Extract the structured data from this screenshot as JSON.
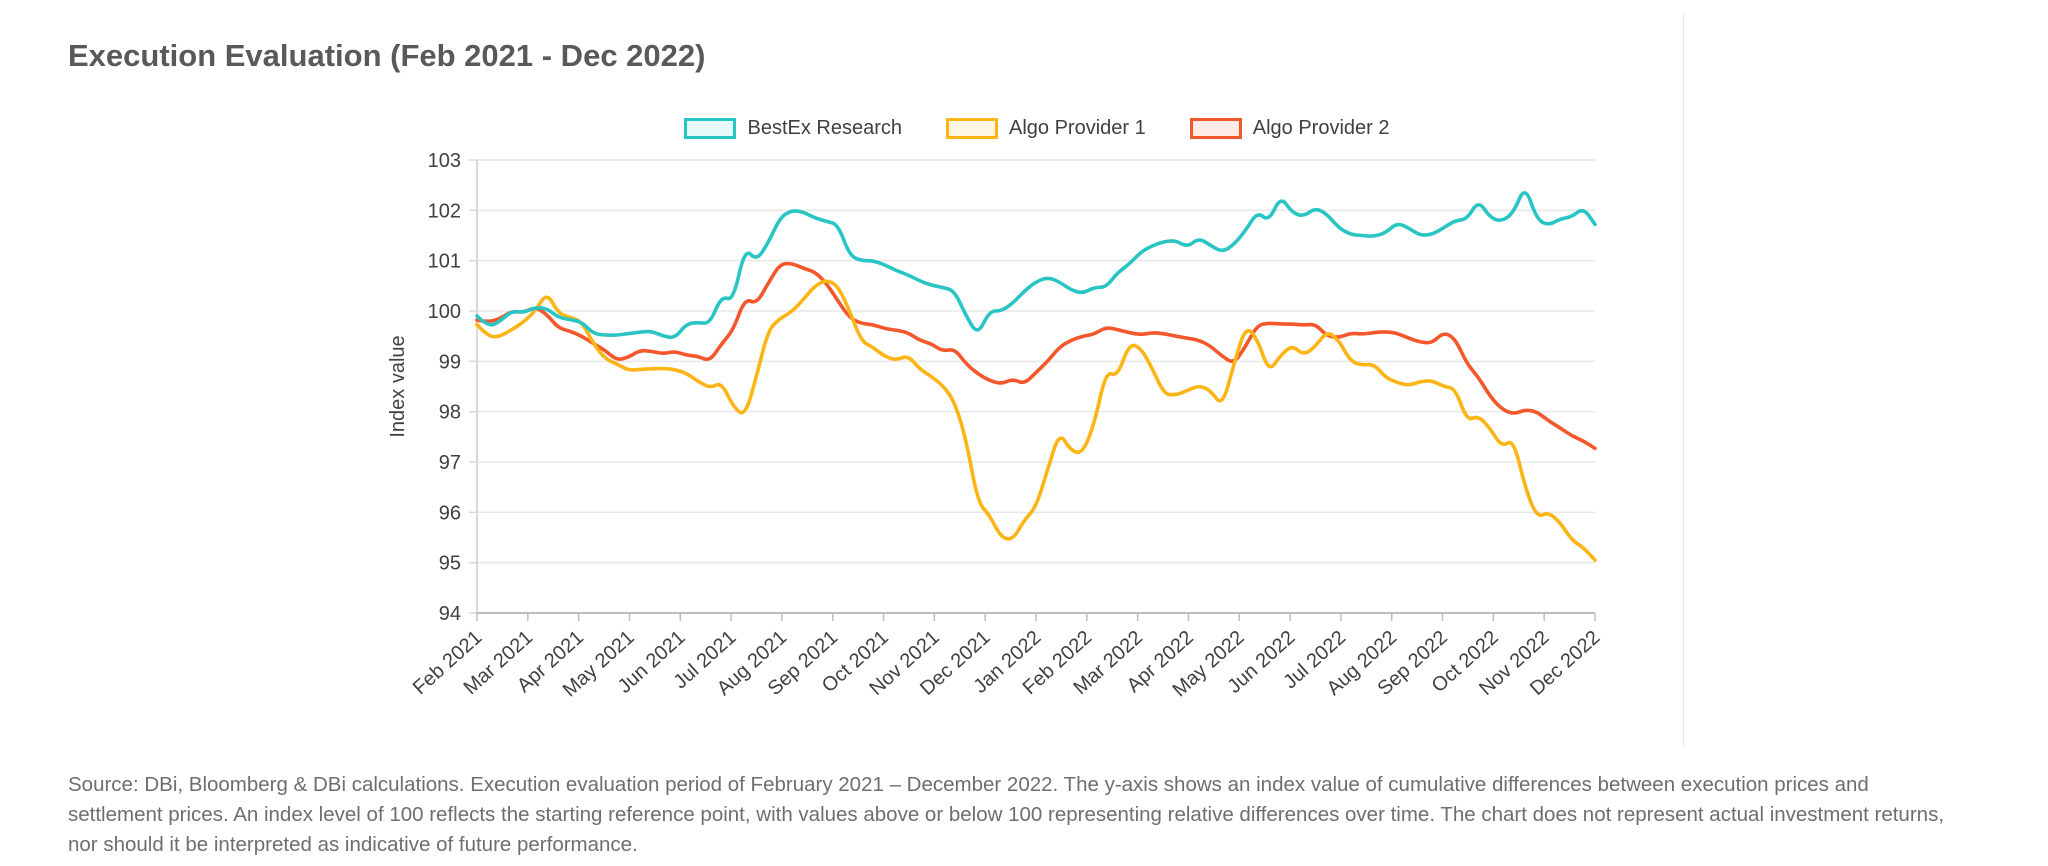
{
  "title": "Execution Evaluation (Feb 2021 - Dec 2022)",
  "footer": {
    "text": "Source: DBi, Bloomberg & DBi calculations. Execution evaluation period of February 2021 – December 2022. The y-axis shows an index value of cumulative differences between execution prices and settlement prices. An index level of 100 reflects the starting reference point, with values above or below 100 representing relative differences over time. The chart does not represent actual investment returns, nor should it be interpreted as indicative of future performance."
  },
  "chart_data": {
    "type": "line",
    "title": "Execution Evaluation (Feb 2021 - Dec 2022)",
    "xlabel": "",
    "ylabel": "Index value",
    "ylim": [
      94,
      103
    ],
    "y_ticks": [
      94,
      95,
      96,
      97,
      98,
      99,
      100,
      101,
      102,
      103
    ],
    "grid": "horizontal",
    "legend_position": "top-center",
    "x_unit": "weekly samples spanning the month ticks",
    "x_tick_labels": [
      "Feb 2021",
      "Mar 2021",
      "Apr 2021",
      "May 2021",
      "Jun 2021",
      "Jul 2021",
      "Aug 2021",
      "Sep 2021",
      "Oct 2021",
      "Nov 2021",
      "Dec 2021",
      "Jan 2022",
      "Feb 2022",
      "Mar 2022",
      "Apr 2022",
      "May 2022",
      "Jun 2022",
      "Jul 2022",
      "Aug 2022",
      "Sep 2022",
      "Oct 2022",
      "Nov 2022",
      "Dec 2022"
    ],
    "colors": {
      "axis_text": "#414042",
      "grid_line": "#e7e7e7",
      "axis_line_left": "#d9d9d9",
      "axis_line_bottom": "#bdbdbd"
    },
    "series": [
      {
        "name": "Algo Provider 2",
        "color": "#f4572b",
        "swatch_fill": "#fcece5",
        "values": [
          99.82,
          99.78,
          99.85,
          100.0,
          99.97,
          100.08,
          99.93,
          99.66,
          99.6,
          99.5,
          99.35,
          99.22,
          99.02,
          99.08,
          99.22,
          99.2,
          99.15,
          99.2,
          99.12,
          99.1,
          99.0,
          99.35,
          99.62,
          100.25,
          100.14,
          100.55,
          100.93,
          100.95,
          100.85,
          100.78,
          100.55,
          100.2,
          99.86,
          99.75,
          99.73,
          99.65,
          99.62,
          99.57,
          99.42,
          99.35,
          99.2,
          99.25,
          98.95,
          98.75,
          98.62,
          98.55,
          98.65,
          98.55,
          98.78,
          99.0,
          99.28,
          99.42,
          99.5,
          99.54,
          99.68,
          99.63,
          99.57,
          99.53,
          99.57,
          99.55,
          99.5,
          99.46,
          99.42,
          99.3,
          99.1,
          98.95,
          99.3,
          99.72,
          99.76,
          99.74,
          99.74,
          99.72,
          99.74,
          99.5,
          99.47,
          99.56,
          99.54,
          99.57,
          99.59,
          99.56,
          99.46,
          99.38,
          99.36,
          99.58,
          99.45,
          98.95,
          98.68,
          98.3,
          98.05,
          97.95,
          98.04,
          98.0,
          97.82,
          97.68,
          97.52,
          97.42,
          97.27
        ]
      },
      {
        "name": "Algo Provider 1",
        "color": "#fdb515",
        "swatch_fill": "#fdf6e3",
        "values": [
          99.73,
          99.48,
          99.5,
          99.63,
          99.78,
          100.0,
          100.37,
          99.95,
          99.87,
          99.79,
          99.35,
          99.05,
          98.95,
          98.82,
          98.84,
          98.85,
          98.86,
          98.84,
          98.76,
          98.6,
          98.47,
          98.58,
          98.1,
          97.9,
          98.7,
          99.62,
          99.85,
          99.98,
          100.22,
          100.5,
          100.62,
          100.5,
          100.0,
          99.4,
          99.28,
          99.1,
          99.02,
          99.12,
          98.85,
          98.7,
          98.52,
          98.2,
          97.45,
          96.2,
          95.95,
          95.5,
          95.45,
          95.85,
          96.1,
          96.85,
          97.6,
          97.22,
          97.17,
          97.75,
          98.8,
          98.7,
          99.35,
          99.27,
          98.85,
          98.35,
          98.33,
          98.42,
          98.52,
          98.42,
          98.1,
          98.95,
          99.7,
          99.45,
          98.78,
          99.12,
          99.32,
          99.12,
          99.3,
          99.6,
          99.42,
          99.0,
          98.92,
          98.95,
          98.68,
          98.58,
          98.52,
          98.6,
          98.62,
          98.5,
          98.46,
          97.82,
          97.92,
          97.66,
          97.3,
          97.45,
          96.5,
          95.9,
          96.0,
          95.8,
          95.45,
          95.3,
          95.05
        ]
      },
      {
        "name": "BestEx Research",
        "color": "#29c5c5",
        "swatch_fill": "#e7f9f9",
        "values": [
          99.9,
          99.68,
          99.8,
          100.0,
          99.97,
          100.07,
          100.05,
          99.87,
          99.83,
          99.78,
          99.55,
          99.52,
          99.52,
          99.55,
          99.58,
          99.6,
          99.5,
          99.46,
          99.75,
          99.77,
          99.75,
          100.3,
          100.2,
          101.25,
          101.0,
          101.35,
          101.85,
          102.0,
          101.97,
          101.85,
          101.78,
          101.72,
          101.1,
          101.0,
          101.0,
          100.92,
          100.8,
          100.72,
          100.6,
          100.51,
          100.47,
          100.4,
          99.9,
          99.52,
          100.0,
          100.0,
          100.15,
          100.4,
          100.58,
          100.67,
          100.58,
          100.42,
          100.35,
          100.47,
          100.47,
          100.76,
          100.93,
          101.17,
          101.3,
          101.38,
          101.4,
          101.27,
          101.45,
          101.3,
          101.17,
          101.32,
          101.6,
          101.97,
          101.78,
          102.28,
          101.95,
          101.88,
          102.05,
          101.92,
          101.65,
          101.52,
          101.5,
          101.48,
          101.55,
          101.75,
          101.65,
          101.5,
          101.52,
          101.65,
          101.8,
          101.82,
          102.2,
          101.85,
          101.78,
          101.95,
          102.5,
          101.82,
          101.7,
          101.83,
          101.87,
          102.05,
          101.72
        ]
      }
    ],
    "legend_order": [
      "BestEx Research",
      "Algo Provider 1",
      "Algo Provider 2"
    ]
  }
}
